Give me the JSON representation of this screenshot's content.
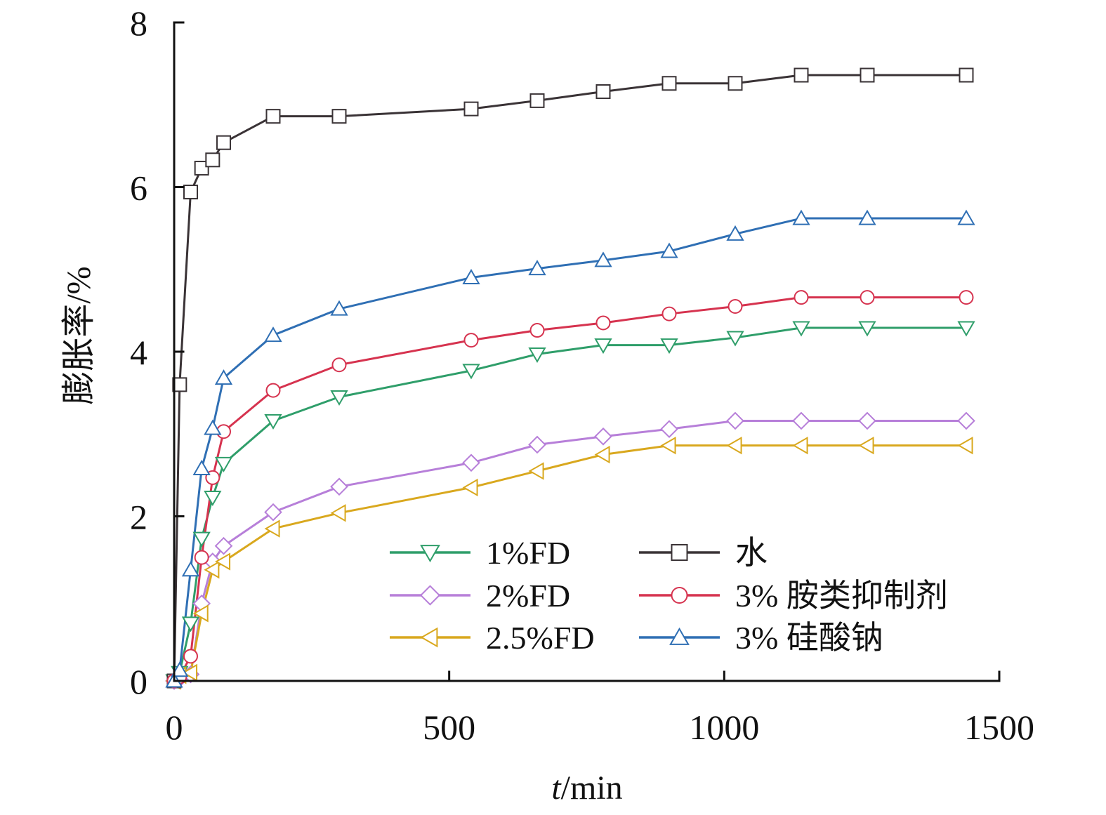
{
  "chart_data": {
    "type": "line",
    "title": "",
    "xlabel": "t/min",
    "ylabel": "膨胀率/%",
    "xlim": [
      0,
      1500
    ],
    "ylim": [
      0,
      8
    ],
    "xticks": [
      0,
      500,
      1000,
      1500
    ],
    "yticks": [
      0,
      2,
      4,
      6,
      8
    ],
    "grid": false,
    "legend_position": "bottom-right",
    "series": [
      {
        "name": "1%FD",
        "color": "#2f9e6a",
        "marker": "triangle-down",
        "points": [
          [
            0,
            0
          ],
          [
            10,
            0.1
          ],
          [
            30,
            0.7
          ],
          [
            50,
            1.73
          ],
          [
            70,
            2.23
          ],
          [
            90,
            2.64
          ],
          [
            180,
            3.16
          ],
          [
            300,
            3.45
          ],
          [
            540,
            3.77
          ],
          [
            660,
            3.97
          ],
          [
            780,
            4.08
          ],
          [
            900,
            4.08
          ],
          [
            1020,
            4.17
          ],
          [
            1140,
            4.29
          ],
          [
            1260,
            4.29
          ],
          [
            1440,
            4.29
          ]
        ]
      },
      {
        "name": "2%FD",
        "color": "#b77fd9",
        "marker": "diamond",
        "points": [
          [
            0,
            0
          ],
          [
            10,
            0.03
          ],
          [
            30,
            0.08
          ],
          [
            50,
            0.94
          ],
          [
            70,
            1.45
          ],
          [
            90,
            1.64
          ],
          [
            180,
            2.05
          ],
          [
            300,
            2.36
          ],
          [
            540,
            2.65
          ],
          [
            660,
            2.87
          ],
          [
            780,
            2.97
          ],
          [
            900,
            3.06
          ],
          [
            1020,
            3.16
          ],
          [
            1140,
            3.16
          ],
          [
            1260,
            3.16
          ],
          [
            1440,
            3.16
          ]
        ]
      },
      {
        "name": "2.5%FD",
        "color": "#d9a81e",
        "marker": "triangle-left",
        "points": [
          [
            0,
            0
          ],
          [
            10,
            0.07
          ],
          [
            30,
            0.1
          ],
          [
            50,
            0.82
          ],
          [
            70,
            1.35
          ],
          [
            90,
            1.45
          ],
          [
            180,
            1.85
          ],
          [
            300,
            2.04
          ],
          [
            540,
            2.35
          ],
          [
            660,
            2.55
          ],
          [
            780,
            2.75
          ],
          [
            900,
            2.86
          ],
          [
            1020,
            2.86
          ],
          [
            1140,
            2.86
          ],
          [
            1260,
            2.86
          ],
          [
            1440,
            2.86
          ]
        ]
      },
      {
        "name": "水",
        "color": "#3a3336",
        "marker": "square",
        "points": [
          [
            0,
            0
          ],
          [
            10,
            3.6
          ],
          [
            30,
            5.94
          ],
          [
            50,
            6.23
          ],
          [
            70,
            6.33
          ],
          [
            90,
            6.54
          ],
          [
            180,
            6.86
          ],
          [
            300,
            6.86
          ],
          [
            540,
            6.95
          ],
          [
            660,
            7.05
          ],
          [
            780,
            7.16
          ],
          [
            900,
            7.26
          ],
          [
            1020,
            7.26
          ],
          [
            1140,
            7.36
          ],
          [
            1260,
            7.36
          ],
          [
            1440,
            7.36
          ]
        ]
      },
      {
        "name": "3% 胺类抑制剂",
        "color": "#d6334f",
        "marker": "circle",
        "points": [
          [
            0,
            0
          ],
          [
            10,
            0.05
          ],
          [
            30,
            0.3
          ],
          [
            50,
            1.5
          ],
          [
            70,
            2.47
          ],
          [
            90,
            3.03
          ],
          [
            180,
            3.53
          ],
          [
            300,
            3.84
          ],
          [
            540,
            4.14
          ],
          [
            660,
            4.26
          ],
          [
            780,
            4.35
          ],
          [
            900,
            4.46
          ],
          [
            1020,
            4.55
          ],
          [
            1140,
            4.66
          ],
          [
            1260,
            4.66
          ],
          [
            1440,
            4.66
          ]
        ]
      },
      {
        "name": "3% 硅酸钠",
        "color": "#2f6fb4",
        "marker": "triangle-up",
        "points": [
          [
            0,
            0
          ],
          [
            10,
            0.13
          ],
          [
            30,
            1.35
          ],
          [
            50,
            2.58
          ],
          [
            70,
            3.07
          ],
          [
            90,
            3.68
          ],
          [
            180,
            4.2
          ],
          [
            300,
            4.52
          ],
          [
            540,
            4.9
          ],
          [
            660,
            5.01
          ],
          [
            780,
            5.11
          ],
          [
            900,
            5.22
          ],
          [
            1020,
            5.43
          ],
          [
            1140,
            5.62
          ],
          [
            1260,
            5.62
          ],
          [
            1440,
            5.62
          ]
        ]
      }
    ]
  }
}
